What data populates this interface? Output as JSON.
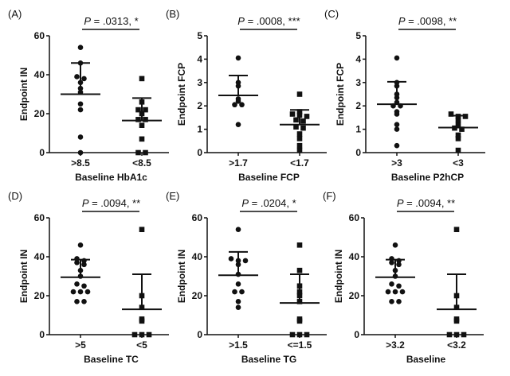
{
  "colors": {
    "ink": "#111111",
    "background": "#ffffff"
  },
  "chart_data": [
    {
      "type": "scatter",
      "panel": "(A)",
      "ylabel": "Endpoint IN",
      "xlabel": "Baseline HbA1c",
      "ylim": [
        0,
        60
      ],
      "yticks": [
        0,
        20,
        40,
        60
      ],
      "p_symbol": "P",
      "p_text": " = .0313, *",
      "categories": [
        ">8.5",
        "<8.5"
      ],
      "markers": [
        "circle",
        "square"
      ],
      "series": [
        {
          "values": [
            54,
            46,
            39,
            38,
            36,
            33,
            31,
            25,
            22,
            8,
            0
          ],
          "mean": 30,
          "sd_upper": 46
        },
        {
          "values": [
            38,
            26,
            22,
            22,
            20,
            17,
            17,
            14,
            7,
            0,
            0
          ],
          "mean": 16.5,
          "sd_upper": 28
        }
      ]
    },
    {
      "type": "scatter",
      "panel": "(B)",
      "ylabel": "Endpoint FCP",
      "xlabel": "Baseline FCP",
      "ylim": [
        0,
        5
      ],
      "yticks": [
        0,
        1,
        2,
        3,
        4,
        5
      ],
      "p_symbol": "P",
      "p_text": " = .0008, ***",
      "categories": [
        ">1.7",
        "<1.7"
      ],
      "markers": [
        "circle",
        "square"
      ],
      "series": [
        {
          "values": [
            4.05,
            3.0,
            2.85,
            2.3,
            2.2,
            2.05,
            2.05,
            1.2
          ],
          "mean": 2.45,
          "sd_upper": 3.3
        },
        {
          "values": [
            2.5,
            1.75,
            1.65,
            1.6,
            1.55,
            1.4,
            1.35,
            1.1,
            1.05,
            0.8,
            0.6,
            0.3,
            0.1
          ],
          "mean": 1.2,
          "sd_upper": 1.83
        }
      ]
    },
    {
      "type": "scatter",
      "panel": "(C)",
      "ylabel": "Endpoint FCP",
      "xlabel": "Baseline P2hCP",
      "ylim": [
        0,
        5
      ],
      "yticks": [
        0,
        1,
        2,
        3,
        4,
        5
      ],
      "p_symbol": "P",
      "p_text": " = .0098, **",
      "categories": [
        ">3",
        "<3"
      ],
      "markers": [
        "circle",
        "square"
      ],
      "series": [
        {
          "values": [
            4.05,
            3.0,
            2.85,
            2.5,
            2.35,
            2.15,
            2.0,
            2.0,
            1.75,
            1.65,
            1.2,
            1.0,
            0.3
          ],
          "mean": 2.07,
          "sd_upper": 3.03
        },
        {
          "values": [
            1.65,
            1.55,
            1.55,
            1.4,
            1.2,
            1.05,
            1.0,
            0.75,
            0.6,
            0.1
          ],
          "mean": 1.07,
          "sd_upper": 1.58
        }
      ]
    },
    {
      "type": "scatter",
      "panel": "(D)",
      "ylabel": "Endpoint IN",
      "xlabel": "Baseline TC",
      "ylim": [
        0,
        60
      ],
      "yticks": [
        0,
        20,
        40,
        60
      ],
      "p_symbol": "P",
      "p_text": " = .0094, **",
      "categories": [
        ">5",
        "<5"
      ],
      "markers": [
        "circle",
        "square"
      ],
      "series": [
        {
          "values": [
            46,
            39,
            38,
            37,
            36,
            33,
            30,
            26,
            25,
            22,
            22,
            22,
            17,
            17
          ],
          "mean": 29.5,
          "sd_upper": 38.5
        },
        {
          "values": [
            54,
            20,
            14,
            8,
            7,
            0,
            0,
            0
          ],
          "mean": 13,
          "sd_upper": 31
        }
      ]
    },
    {
      "type": "scatter",
      "panel": "(E)",
      "ylabel": "Endpoint IN",
      "xlabel": "Baseline TG",
      "ylim": [
        0,
        60
      ],
      "yticks": [
        0,
        20,
        40,
        60
      ],
      "p_symbol": "P",
      "p_text": " = .0204, *",
      "categories": [
        ">1.5",
        "<=1.5"
      ],
      "markers": [
        "circle",
        "square"
      ],
      "series": [
        {
          "values": [
            54,
            39,
            38,
            38,
            36,
            31,
            26,
            22,
            22,
            17,
            14
          ],
          "mean": 30.5,
          "sd_upper": 42.5
        },
        {
          "values": [
            46,
            33,
            25,
            22,
            20,
            17,
            8,
            7,
            0,
            0,
            0
          ],
          "mean": 16.3,
          "sd_upper": 31
        }
      ]
    },
    {
      "type": "scatter",
      "panel": "(F)",
      "ylabel": "Endpoint IN",
      "xlabel": "Baseline",
      "ylim": [
        0,
        60
      ],
      "yticks": [
        0,
        20,
        40,
        60
      ],
      "p_symbol": "P",
      "p_text": " = .0094, **",
      "categories": [
        ">3.2",
        "<3.2"
      ],
      "markers": [
        "circle",
        "square"
      ],
      "series": [
        {
          "values": [
            46,
            39,
            38,
            37,
            36,
            33,
            30,
            26,
            25,
            22,
            22,
            22,
            17,
            17
          ],
          "mean": 29.5,
          "sd_upper": 38.5
        },
        {
          "values": [
            54,
            20,
            14,
            8,
            7,
            0,
            0,
            0
          ],
          "mean": 13,
          "sd_upper": 31
        }
      ]
    }
  ]
}
